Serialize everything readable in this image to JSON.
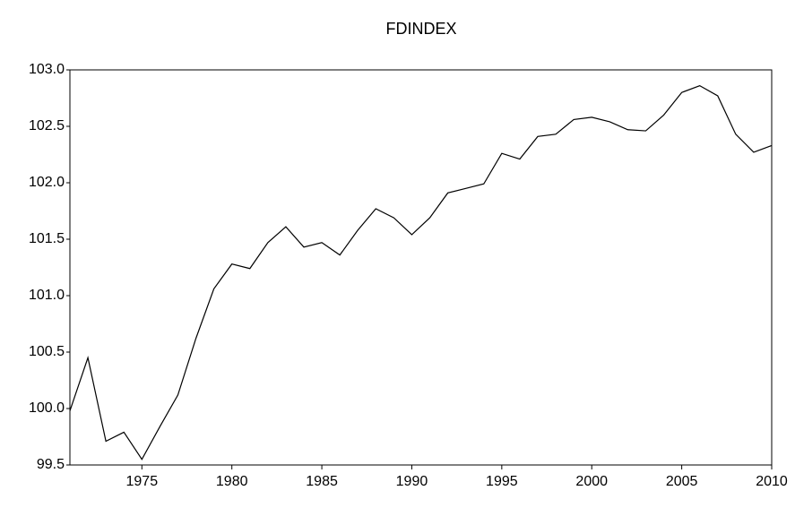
{
  "chart_data": {
    "type": "line",
    "title": "FDINDEX",
    "x": [
      1971,
      1972,
      1973,
      1974,
      1975,
      1976,
      1977,
      1978,
      1979,
      1980,
      1981,
      1982,
      1983,
      1984,
      1985,
      1986,
      1987,
      1988,
      1989,
      1990,
      1991,
      1992,
      1993,
      1994,
      1995,
      1996,
      1997,
      1998,
      1999,
      2000,
      2001,
      2002,
      2003,
      2004,
      2005,
      2006,
      2007,
      2008,
      2009,
      2010
    ],
    "series": [
      {
        "name": "FDINDEX",
        "color": "#000000",
        "values": [
          99.98,
          100.45,
          99.71,
          99.79,
          99.55,
          99.84,
          100.12,
          100.62,
          101.06,
          101.28,
          101.24,
          101.47,
          101.61,
          101.43,
          101.47,
          101.36,
          101.58,
          101.77,
          101.69,
          101.54,
          101.69,
          101.91,
          101.95,
          101.99,
          102.26,
          102.21,
          102.41,
          102.43,
          102.56,
          102.58,
          102.54,
          102.47,
          102.46,
          102.6,
          102.8,
          102.86,
          102.77,
          102.43,
          102.27,
          102.33
        ]
      }
    ],
    "xlim": [
      1971,
      2010
    ],
    "xticks": [
      1975,
      1980,
      1985,
      1990,
      1995,
      2000,
      2005,
      2010
    ],
    "ylim": [
      99.5,
      103.0
    ],
    "yticks": [
      99.5,
      {
        "value": 100.0,
        "label": "100.0"
      },
      100.5,
      {
        "value": 101.0,
        "label": "101.0"
      },
      101.5,
      {
        "value": 102.0,
        "label": "102.0"
      },
      102.5,
      {
        "value": 103.0,
        "label": "103.0"
      }
    ],
    "grid": false
  }
}
